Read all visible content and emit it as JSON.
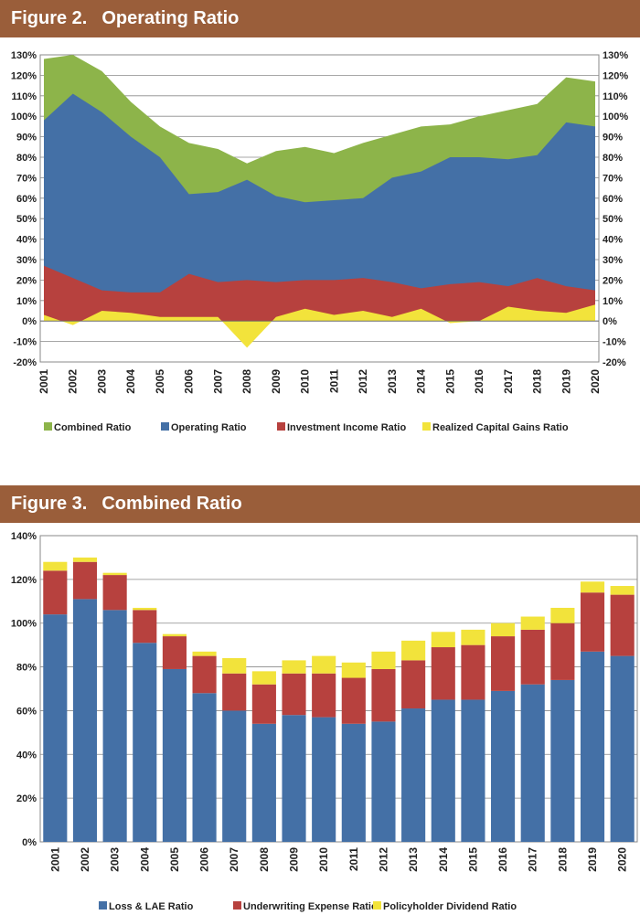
{
  "figure2": {
    "header_number": "Figure 2.",
    "header_title": "Operating Ratio"
  },
  "figure3": {
    "header_number": "Figure 3.",
    "header_title": "Combined Ratio"
  },
  "colors": {
    "header_bg": "#9a5e3a",
    "green": "#8db44a",
    "blue": "#4470a6",
    "red": "#b7413e",
    "yellow": "#f2e33b"
  },
  "chart_data": [
    {
      "type": "area",
      "x": [
        "2001",
        "2002",
        "2003",
        "2004",
        "2005",
        "2006",
        "2007",
        "2008",
        "2009",
        "2010",
        "2011",
        "2012",
        "2013",
        "2014",
        "2015",
        "2016",
        "2017",
        "2018",
        "2019",
        "2020"
      ],
      "ylim": [
        -20,
        130
      ],
      "yticks": [
        "-20%",
        "-10%",
        "0%",
        "10%",
        "20%",
        "30%",
        "40%",
        "50%",
        "60%",
        "70%",
        "80%",
        "90%",
        "100%",
        "110%",
        "120%",
        "130%"
      ],
      "grid": true,
      "legend_position": "bottom",
      "series": [
        {
          "name": "Combined Ratio",
          "color": "#8db44a",
          "values": [
            128,
            130,
            122,
            107,
            95,
            87,
            84,
            77,
            83,
            85,
            82,
            87,
            91,
            95,
            96,
            100,
            103,
            106,
            119,
            117
          ]
        },
        {
          "name": "Operating Ratio",
          "color": "#4470a6",
          "values": [
            98,
            111,
            102,
            90,
            80,
            62,
            63,
            69,
            61,
            58,
            59,
            60,
            70,
            73,
            80,
            80,
            79,
            81,
            97,
            95
          ]
        },
        {
          "name": "Investment Income Ratio",
          "color": "#b7413e",
          "values": [
            27,
            21,
            15,
            14,
            14,
            23,
            19,
            20,
            19,
            20,
            20,
            21,
            19,
            16,
            18,
            19,
            17,
            21,
            17,
            15
          ]
        },
        {
          "name": "Realized Capital Gains Ratio",
          "color": "#f2e33b",
          "values": [
            3,
            -2,
            5,
            4,
            2,
            2,
            2,
            -13,
            2,
            6,
            3,
            5,
            2,
            6,
            -1,
            0,
            7,
            5,
            4,
            8
          ]
        }
      ]
    },
    {
      "type": "bar",
      "stacked": true,
      "categories": [
        "2001",
        "2002",
        "2003",
        "2004",
        "2005",
        "2006",
        "2007",
        "2008",
        "2009",
        "2010",
        "2011",
        "2012",
        "2013",
        "2014",
        "2015",
        "2016",
        "2017",
        "2018",
        "2019",
        "2020"
      ],
      "ylim": [
        0,
        140
      ],
      "yticks": [
        "0%",
        "20%",
        "40%",
        "60%",
        "80%",
        "100%",
        "120%",
        "140%"
      ],
      "grid": true,
      "legend_position": "bottom",
      "series": [
        {
          "name": "Loss & LAE Ratio",
          "color": "#4470a6",
          "values": [
            104,
            111,
            106,
            91,
            79,
            68,
            60,
            54,
            58,
            57,
            54,
            55,
            61,
            65,
            65,
            69,
            72,
            74,
            87,
            85
          ]
        },
        {
          "name": "Underwriting Expense Ratio",
          "color": "#b7413e",
          "values": [
            20,
            17,
            16,
            15,
            15,
            17,
            17,
            18,
            19,
            20,
            21,
            24,
            22,
            24,
            25,
            25,
            25,
            26,
            27,
            28
          ]
        },
        {
          "name": "Policyholder Dividend Ratio",
          "color": "#f2e33b",
          "values": [
            4,
            2,
            1,
            1,
            1,
            2,
            7,
            6,
            6,
            8,
            7,
            8,
            9,
            7,
            7,
            6,
            6,
            7,
            5,
            4
          ]
        }
      ]
    }
  ]
}
